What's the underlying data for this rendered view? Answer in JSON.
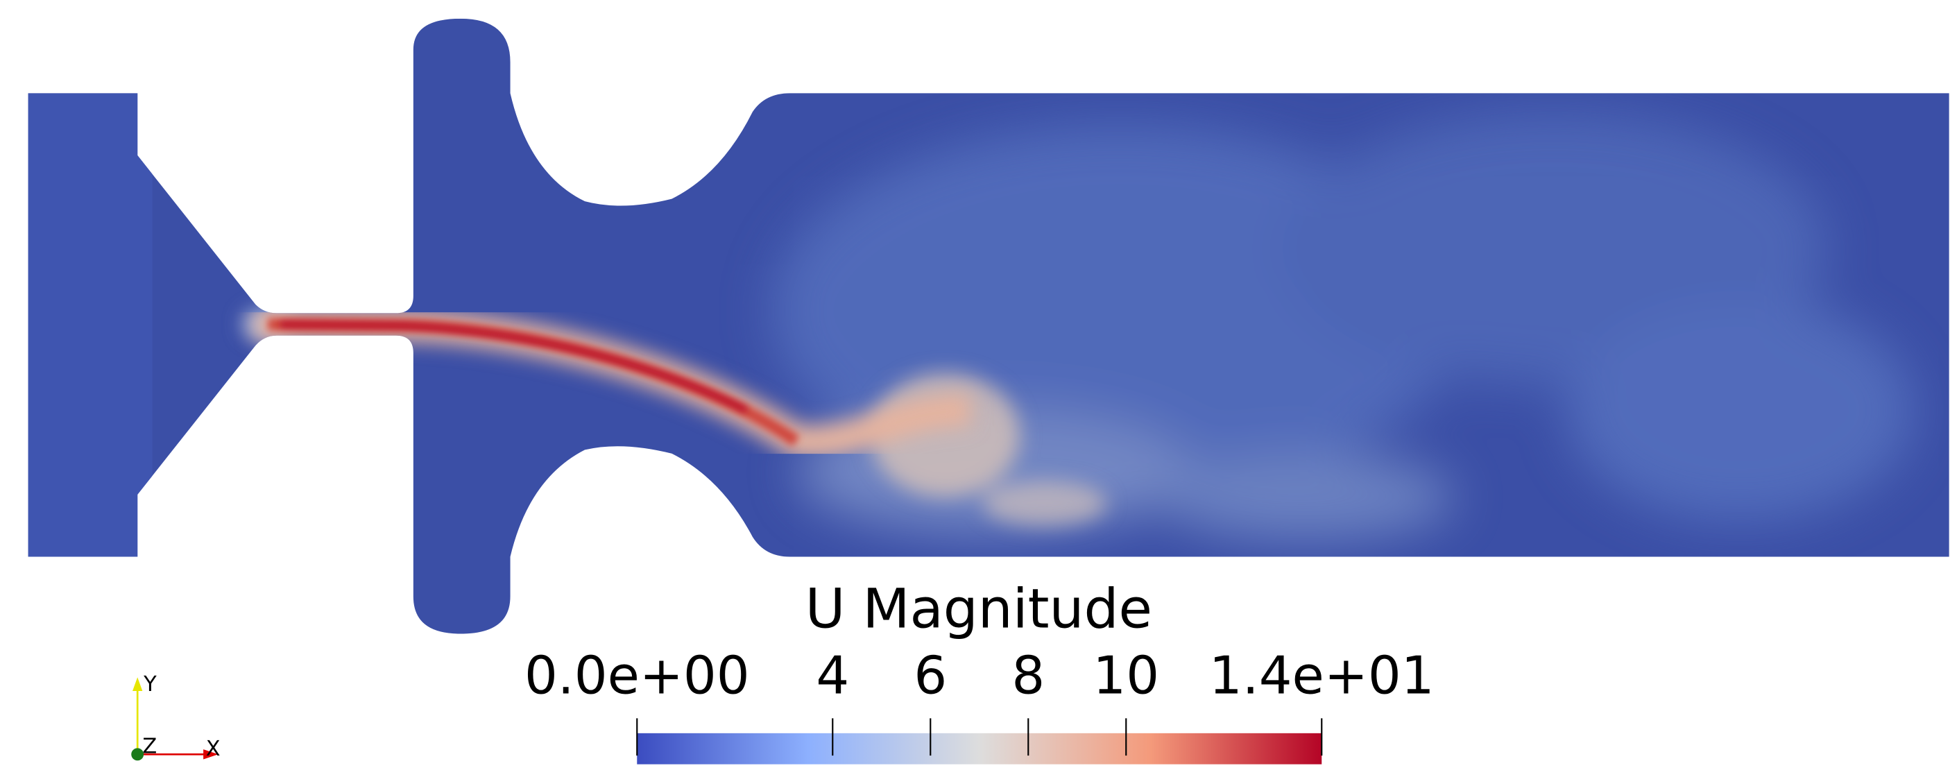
{
  "colorbar": {
    "title": "U Magnitude",
    "range": [
      0,
      14
    ],
    "ticks": [
      {
        "value": 0,
        "label": "0.0e+00"
      },
      4,
      6,
      8,
      10,
      {
        "value": 14,
        "label": "1.4e+01"
      }
    ]
  },
  "axes_triad": {
    "x": "X",
    "y": "Y",
    "z": "Z"
  }
}
